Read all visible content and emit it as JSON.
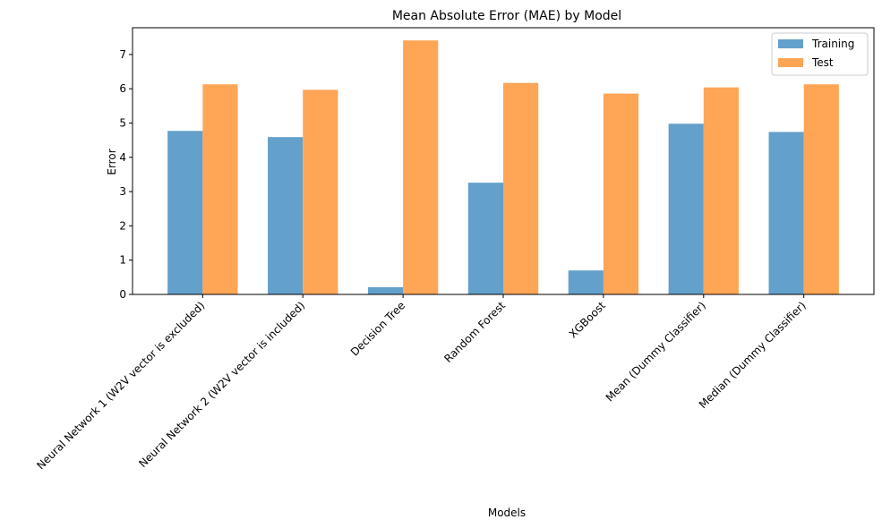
{
  "chart_data": {
    "type": "bar",
    "title": "Mean Absolute Error (MAE) by Model",
    "xlabel": "Models",
    "ylabel": "Error",
    "categories": [
      "Neural Network 1 (W2V vector is excluded)",
      "Neural Network 2 (W2V vector is included)",
      "Decision Tree",
      "Random Forest",
      "XGBoost",
      "Mean (Dummy Classifier)",
      "Median (Dummy Classifier)"
    ],
    "series": [
      {
        "name": "Training",
        "color": "#63A0CB",
        "values": [
          4.77,
          4.59,
          0.21,
          3.26,
          0.7,
          4.98,
          4.74
        ]
      },
      {
        "name": "Test",
        "color": "#FFA556",
        "values": [
          6.13,
          5.97,
          7.41,
          6.17,
          5.86,
          6.04,
          6.13
        ]
      }
    ],
    "ylim": [
      0,
      7.78
    ],
    "yticks": [
      0,
      1,
      2,
      3,
      4,
      5,
      6,
      7
    ],
    "grid": false,
    "legend": "top-right"
  }
}
